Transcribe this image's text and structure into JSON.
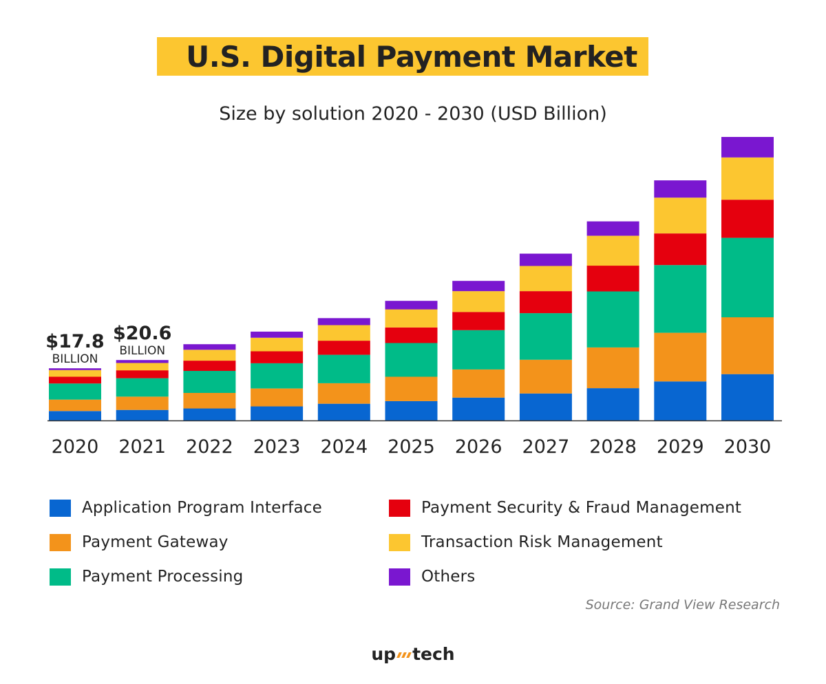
{
  "title": "U.S. Digital Payment Market",
  "subtitle": "Size by solution 2020 - 2030 (USD Billion)",
  "chart_data": {
    "type": "bar",
    "stacked": true,
    "title": "U.S. Digital Payment Market",
    "subtitle": "Size by solution 2020 - 2030 (USD Billion)",
    "categories": [
      "2020",
      "2021",
      "2022",
      "2023",
      "2024",
      "2025",
      "2026",
      "2027",
      "2028",
      "2029",
      "2030"
    ],
    "series": [
      {
        "name": "Application Program Interface",
        "color": "#0866d1",
        "values": [
          3.2,
          3.6,
          4.1,
          4.8,
          5.7,
          6.6,
          7.8,
          9.2,
          11.0,
          13.3,
          15.8
        ]
      },
      {
        "name": "Payment Gateway",
        "color": "#f3931b",
        "values": [
          3.9,
          4.5,
          5.3,
          6.1,
          7.0,
          8.3,
          9.6,
          11.5,
          13.9,
          16.6,
          19.4
        ]
      },
      {
        "name": "Payment Processing",
        "color": "#00bb88",
        "values": [
          5.5,
          6.3,
          7.5,
          8.6,
          9.7,
          11.5,
          13.4,
          15.9,
          19.1,
          23.1,
          27.1
        ]
      },
      {
        "name": "Payment Security & Fraud Management",
        "color": "#e5000e",
        "values": [
          2.3,
          2.7,
          3.5,
          4.1,
          4.8,
          5.3,
          6.2,
          7.5,
          8.8,
          10.8,
          13.0
        ]
      },
      {
        "name": "Transaction Risk Management",
        "color": "#fcc630",
        "values": [
          2.3,
          2.5,
          3.7,
          4.6,
          5.3,
          6.2,
          7.1,
          8.6,
          10.2,
          12.2,
          14.4
        ]
      },
      {
        "name": "Others",
        "color": "#7a17d0",
        "values": [
          0.6,
          1.0,
          1.9,
          2.1,
          2.4,
          2.9,
          3.5,
          4.2,
          4.9,
          5.9,
          7.0
        ]
      }
    ],
    "totals": [
      17.8,
      20.6,
      26.0,
      30.3,
      34.9,
      40.8,
      47.6,
      56.9,
      67.9,
      81.9,
      96.7
    ],
    "annotations": [
      {
        "category": "2020",
        "value": "$17.8",
        "unit": "BILLION"
      },
      {
        "category": "2021",
        "value": "$20.6",
        "unit": "BILLION"
      }
    ],
    "ylim": [
      0,
      100
    ],
    "grid": false,
    "legend_position": "bottom"
  },
  "legend": [
    {
      "label": "Application Program Interface",
      "color": "#0866d1"
    },
    {
      "label": "Payment Gateway",
      "color": "#f3931b"
    },
    {
      "label": "Payment Processing",
      "color": "#00bb88"
    },
    {
      "label": "Payment Security & Fraud Management",
      "color": "#e5000e"
    },
    {
      "label": "Transaction Risk Management",
      "color": "#fcc630"
    },
    {
      "label": "Others",
      "color": "#7a17d0"
    }
  ],
  "source": "Source: Grand View Research",
  "logo": {
    "left": "up",
    "right": "tech"
  }
}
